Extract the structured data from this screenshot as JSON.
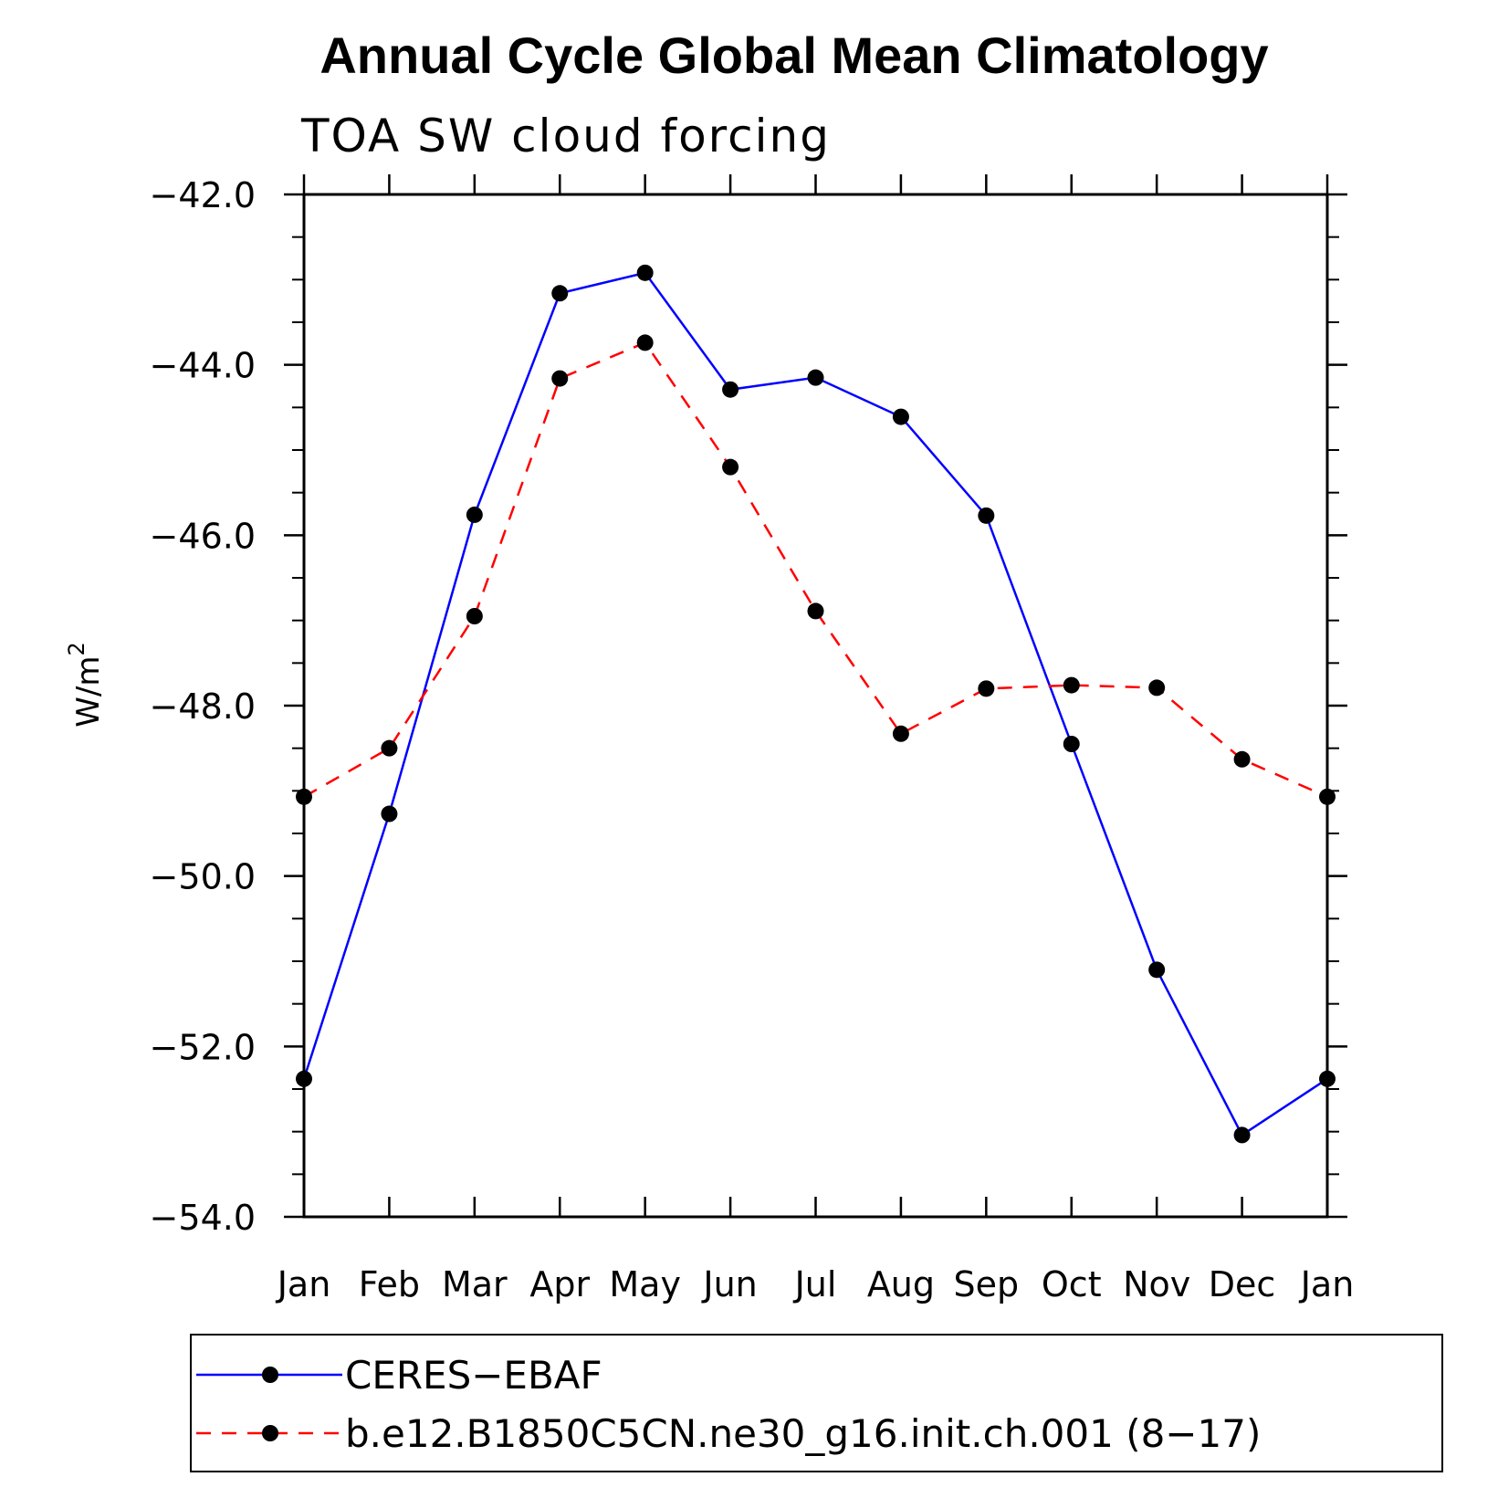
{
  "chart_data": {
    "type": "line",
    "title": "Annual Cycle Global Mean Climatology",
    "subtitle": "TOA SW cloud forcing",
    "xlabel": "",
    "ylabel": "W/m",
    "ylabel_sup": "2",
    "categories": [
      "Jan",
      "Feb",
      "Mar",
      "Apr",
      "May",
      "Jun",
      "Jul",
      "Aug",
      "Sep",
      "Oct",
      "Nov",
      "Dec",
      "Jan"
    ],
    "ylim": [
      -54.0,
      -42.0
    ],
    "yticks": [
      -42.0,
      -44.0,
      -46.0,
      -48.0,
      -50.0,
      -52.0,
      -54.0
    ],
    "ytick_labels": [
      "−42.0",
      "−44.0",
      "−46.0",
      "−48.0",
      "−50.0",
      "−52.0",
      "−54.0"
    ],
    "grid": false,
    "legend_position": "bottom",
    "series": [
      {
        "name": "CERES−EBAF",
        "color": "#0000ff",
        "style": "solid",
        "values": [
          -52.38,
          -49.27,
          -45.76,
          -43.16,
          -42.92,
          -44.29,
          -44.15,
          -44.61,
          -45.77,
          -48.45,
          -51.1,
          -53.04,
          -52.38
        ]
      },
      {
        "name": "b.e12.B1850C5CN.ne30_g16.init.ch.001 (8−17)",
        "color": "#ff0000",
        "style": "dashed",
        "values": [
          -49.07,
          -48.5,
          -46.95,
          -44.16,
          -43.74,
          -45.2,
          -46.89,
          -48.33,
          -47.8,
          -47.76,
          -47.79,
          -48.63,
          -49.07
        ]
      }
    ]
  }
}
